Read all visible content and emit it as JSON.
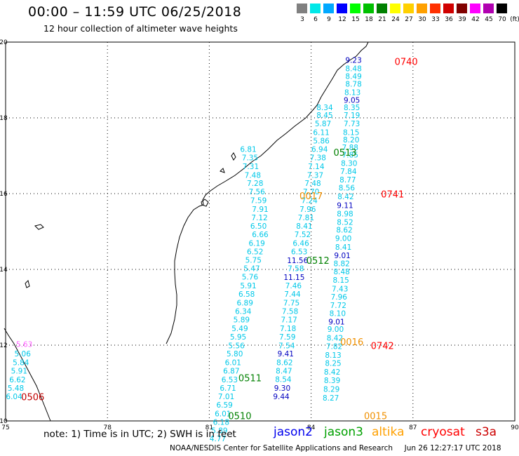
{
  "title": "00:00 – 11:59 UTC 06/25/2018",
  "subtitle": "12 hour collection of altimeter wave heights",
  "legend": {
    "unit": "(ft)",
    "bins": [
      {
        "label": "3",
        "color": "#808080"
      },
      {
        "label": "6",
        "color": "#00e8e8"
      },
      {
        "label": "9",
        "color": "#00a8ff"
      },
      {
        "label": "12",
        "color": "#0000ff"
      },
      {
        "label": "15",
        "color": "#00ff00"
      },
      {
        "label": "18",
        "color": "#00c000"
      },
      {
        "label": "21",
        "color": "#008000"
      },
      {
        "label": "24",
        "color": "#ffff00"
      },
      {
        "label": "27",
        "color": "#ffd000"
      },
      {
        "label": "30",
        "color": "#ffa000"
      },
      {
        "label": "33",
        "color": "#ff3000"
      },
      {
        "label": "36",
        "color": "#d00000"
      },
      {
        "label": "39",
        "color": "#800000"
      },
      {
        "label": "42",
        "color": "#ff00ff"
      },
      {
        "label": "45",
        "color": "#b000b0"
      },
      {
        "label": "70",
        "color": "#000000"
      }
    ]
  },
  "axes": {
    "x_ticks": [
      "75",
      "78",
      "81",
      "84",
      "87",
      "90"
    ],
    "y_ticks": [
      "10",
      "12",
      "14",
      "16",
      "18",
      "20"
    ],
    "xlim": [
      75,
      90
    ],
    "ylim": [
      10,
      20
    ]
  },
  "note": "note: 1) Time is in UTC; 2) SWH is in feet",
  "satellites": [
    {
      "name": "jason2",
      "color": "#0000ee"
    },
    {
      "name": "jason3",
      "color": "#00a000"
    },
    {
      "name": "altika",
      "color": "#ffa000"
    },
    {
      "name": "cryosat",
      "color": "#ff0000"
    },
    {
      "name": "s3a",
      "color": "#cc0000"
    }
  ],
  "credit": "NOAA/NESDIS Center for Satellite Applications and Research     Jun 26 12:27:17 UTC 2018",
  "colors": {
    "cyan": "#00c8e8",
    "sky": "#0098e8",
    "blue": "#0000c0",
    "green": "#008000",
    "orange": "#f09000",
    "red": "#ff0000",
    "magenta": "#ff60ff"
  },
  "pass_labels": [
    {
      "text": "0740",
      "lon": 86.8,
      "lat": 19.4,
      "color": "#ff0000"
    },
    {
      "text": "0741",
      "lon": 86.4,
      "lat": 15.9,
      "color": "#ff0000"
    },
    {
      "text": "0742",
      "lon": 86.1,
      "lat": 11.9,
      "color": "#ff0000"
    },
    {
      "text": "0506",
      "lon": 75.8,
      "lat": 10.55,
      "color": "#c00000"
    },
    {
      "text": "0513",
      "lon": 85.0,
      "lat": 17.0,
      "color": "#008000"
    },
    {
      "text": "0512",
      "lon": 84.2,
      "lat": 14.15,
      "color": "#008000"
    },
    {
      "text": "0511",
      "lon": 82.2,
      "lat": 11.05,
      "color": "#008000"
    },
    {
      "text": "0510",
      "lon": 81.9,
      "lat": 10.05,
      "color": "#008000"
    },
    {
      "text": "0017",
      "lon": 84.0,
      "lat": 15.85,
      "color": "#f09000"
    },
    {
      "text": "0016",
      "lon": 85.2,
      "lat": 12.0,
      "color": "#f09000"
    },
    {
      "text": "0015",
      "lon": 85.9,
      "lat": 10.05,
      "color": "#f09000"
    }
  ],
  "tracks": [
    {
      "color": "#00c8e8",
      "points": [
        [
          "9.23",
          85.25,
          19.45,
          "#0000c0"
        ],
        [
          "8.48",
          85.25,
          19.23
        ],
        [
          "8.49",
          85.25,
          19.03
        ],
        [
          "8.78",
          85.25,
          18.82
        ],
        [
          "8.13",
          85.22,
          18.6
        ],
        [
          "9.05",
          85.2,
          18.4,
          "#0000c0"
        ],
        [
          "8.35",
          85.2,
          18.2
        ],
        [
          "7.19",
          85.2,
          18.0
        ],
        [
          "7.73",
          85.2,
          17.78
        ],
        [
          "8.15",
          85.18,
          17.55
        ],
        [
          "8.20",
          85.18,
          17.35
        ],
        [
          "7.88",
          85.15,
          17.15
        ],
        [
          "7.85",
          85.15,
          16.95
        ],
        [
          "8.30",
          85.12,
          16.73
        ],
        [
          "7.84",
          85.1,
          16.52
        ],
        [
          "8.77",
          85.08,
          16.3
        ],
        [
          "8.56",
          85.05,
          16.08
        ],
        [
          "8.42",
          85.02,
          15.85
        ],
        [
          "9.11",
          85.0,
          15.62,
          "#0000c0"
        ],
        [
          "8.98",
          85.0,
          15.4
        ],
        [
          "8.52",
          85.0,
          15.18
        ],
        [
          "8.62",
          84.98,
          14.97
        ],
        [
          "9.00",
          84.95,
          14.75
        ],
        [
          "8.41",
          84.95,
          14.52
        ],
        [
          "9.01",
          84.92,
          14.3,
          "#0000c0"
        ],
        [
          "8.82",
          84.9,
          14.08
        ],
        [
          "8.48",
          84.9,
          13.87
        ],
        [
          "8.15",
          84.88,
          13.65
        ],
        [
          "7.43",
          84.85,
          13.42
        ],
        [
          "7.96",
          84.82,
          13.2
        ],
        [
          "7.72",
          84.8,
          12.98
        ],
        [
          "8.10",
          84.78,
          12.77
        ],
        [
          "9.01",
          84.75,
          12.55,
          "#0000c0"
        ],
        [
          "9.00",
          84.72,
          12.35
        ],
        [
          "8.42",
          84.7,
          12.12
        ],
        [
          "7.82",
          84.68,
          11.9
        ],
        [
          "8.13",
          84.65,
          11.67
        ],
        [
          "8.25",
          84.65,
          11.45
        ],
        [
          "8.42",
          84.62,
          11.22
        ],
        [
          "8.39",
          84.62,
          11.0
        ],
        [
          "8.29",
          84.6,
          10.77
        ],
        [
          "8.27",
          84.58,
          10.54
        ]
      ]
    },
    {
      "color": "#00c8e8",
      "points": [
        [
          "8.34",
          84.4,
          18.2
        ],
        [
          "8.45",
          84.4,
          18.0
        ],
        [
          "5.87",
          84.35,
          17.78
        ],
        [
          "6.11",
          84.3,
          17.55
        ],
        [
          "5.86",
          84.3,
          17.32
        ],
        [
          "6.94",
          84.25,
          17.1
        ],
        [
          "7.38",
          84.2,
          16.88
        ],
        [
          "7.14",
          84.15,
          16.65
        ],
        [
          "7.37",
          84.12,
          16.42
        ],
        [
          "7.48",
          84.05,
          16.2
        ],
        [
          "7.70",
          84.0,
          15.98
        ],
        [
          "7.24",
          83.95,
          15.75
        ],
        [
          "7.96",
          83.9,
          15.52
        ],
        [
          "7.81",
          83.85,
          15.3
        ],
        [
          "8.41",
          83.8,
          15.07
        ],
        [
          "7.52",
          83.75,
          14.85
        ],
        [
          "6.46",
          83.7,
          14.62
        ],
        [
          "6.53",
          83.65,
          14.4
        ],
        [
          "11.56",
          83.6,
          14.17,
          "#0000c0"
        ],
        [
          "7.58",
          83.55,
          13.95
        ],
        [
          "11.15",
          83.5,
          13.72,
          "#0000c0"
        ],
        [
          "7.46",
          83.48,
          13.5
        ],
        [
          "7.44",
          83.45,
          13.28
        ],
        [
          "7.75",
          83.42,
          13.05
        ],
        [
          "7.58",
          83.38,
          12.82
        ],
        [
          "7.17",
          83.35,
          12.6
        ],
        [
          "7.18",
          83.32,
          12.37
        ],
        [
          "7.59",
          83.3,
          12.15
        ],
        [
          "7.54",
          83.28,
          11.92
        ],
        [
          "9.41",
          83.25,
          11.7,
          "#0000c0"
        ],
        [
          "8.62",
          83.22,
          11.47
        ],
        [
          "8.47",
          83.2,
          11.25
        ],
        [
          "8.54",
          83.18,
          11.03
        ],
        [
          "9.30",
          83.15,
          10.8,
          "#0000c0"
        ],
        [
          "9.44",
          83.12,
          10.57,
          "#0000c0"
        ]
      ]
    },
    {
      "color": "#00c8e8",
      "points": [
        [
          "6.81",
          82.15,
          17.1
        ],
        [
          "7.35",
          82.2,
          16.88
        ],
        [
          "7.31",
          82.22,
          16.65
        ],
        [
          "7.48",
          82.28,
          16.42
        ],
        [
          "7.28",
          82.35,
          16.2
        ],
        [
          "7.56",
          82.4,
          15.98
        ],
        [
          "7.59",
          82.45,
          15.75
        ],
        [
          "7.91",
          82.5,
          15.52
        ],
        [
          "7.12",
          82.48,
          15.3
        ],
        [
          "6.50",
          82.45,
          15.07
        ],
        [
          "6.66",
          82.5,
          14.85
        ],
        [
          "6.19",
          82.4,
          14.62
        ],
        [
          "6.52",
          82.35,
          14.4
        ],
        [
          "5.75",
          82.3,
          14.18
        ],
        [
          "5.47",
          82.25,
          13.95
        ],
        [
          "5.76",
          82.2,
          13.73
        ],
        [
          "5.91",
          82.15,
          13.5
        ],
        [
          "6.58",
          82.1,
          13.28
        ],
        [
          "6.89",
          82.05,
          13.05
        ],
        [
          "6.34",
          82.0,
          12.82
        ],
        [
          "5.89",
          81.95,
          12.6
        ],
        [
          "5.49",
          81.9,
          12.37
        ],
        [
          "5.95",
          81.85,
          12.15
        ],
        [
          "5.56",
          81.8,
          11.92
        ],
        [
          "5.80",
          81.75,
          11.7
        ],
        [
          "6.01",
          81.7,
          11.47
        ],
        [
          "6.87",
          81.65,
          11.25
        ],
        [
          "6.53",
          81.6,
          11.02
        ],
        [
          "6.71",
          81.55,
          10.8
        ],
        [
          "7.01",
          81.5,
          10.57
        ],
        [
          "6.59",
          81.45,
          10.35
        ],
        [
          "6.01",
          81.4,
          10.12
        ],
        [
          "6.18",
          81.35,
          9.9
        ],
        [
          "5.89",
          81.3,
          9.68
        ],
        [
          "4.77",
          81.25,
          9.46
        ]
      ]
    },
    {
      "color": "#00c8e8",
      "points": [
        [
          "5.63",
          75.55,
          11.95,
          "#ff60ff"
        ],
        [
          "5.06",
          75.5,
          11.7
        ],
        [
          "5.84",
          75.45,
          11.47
        ],
        [
          "5.91",
          75.4,
          11.25
        ],
        [
          "6.62",
          75.35,
          11.02
        ],
        [
          "5.48",
          75.3,
          10.8
        ],
        [
          "6.04",
          75.25,
          10.57
        ]
      ]
    }
  ]
}
